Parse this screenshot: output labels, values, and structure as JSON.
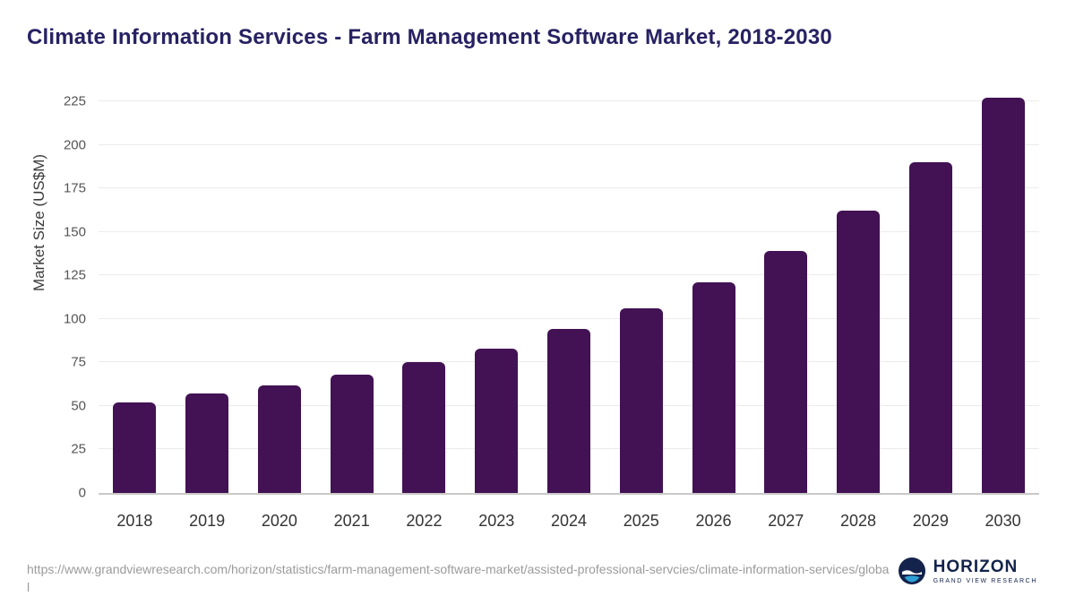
{
  "title": "Climate Information Services - Farm Management Software Market, 2018-2030",
  "chart_data": {
    "type": "bar",
    "categories": [
      "2018",
      "2019",
      "2020",
      "2021",
      "2022",
      "2023",
      "2024",
      "2025",
      "2026",
      "2027",
      "2028",
      "2029",
      "2030"
    ],
    "values": [
      52,
      57,
      62,
      68,
      75,
      83,
      94,
      106,
      121,
      139,
      162,
      190,
      227
    ],
    "title": "Climate Information Services - Farm Management Software Market, 2018-2030",
    "xlabel": "",
    "ylabel": "Market Size (US$M)",
    "ylim": [
      0,
      225
    ],
    "ytick_interval": 25,
    "yticks": [
      0,
      25,
      50,
      75,
      100,
      125,
      150,
      175,
      200,
      225
    ],
    "grid": true,
    "legend": "none",
    "bar_color": "#421254"
  },
  "footer": {
    "source_url": "https://www.grandviewresearch.com/horizon/statistics/farm-management-software-market/assisted-professional-servcies/climate-information-services/global"
  },
  "logo": {
    "name": "HORIZON",
    "subtitle": "GRAND VIEW RESEARCH",
    "circle_color": "#13234b",
    "wave_color": "#2e9fd4"
  },
  "colors": {
    "title": "#262262",
    "bar": "#421254",
    "grid": "#ebebeb",
    "axis_text": "#555555",
    "source_text": "#9b9b9b"
  }
}
